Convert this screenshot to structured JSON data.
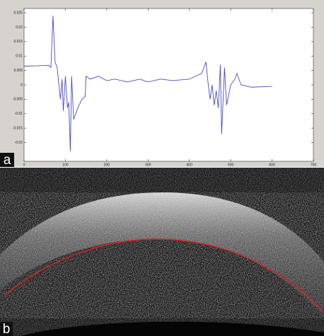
{
  "chart_data": {
    "type": "line",
    "x": [
      0,
      30,
      60,
      65,
      70,
      75,
      80,
      88,
      92,
      95,
      100,
      105,
      108,
      112,
      115,
      120,
      130,
      140,
      148,
      150,
      160,
      180,
      200,
      220,
      250,
      280,
      300,
      330,
      360,
      400,
      430,
      440,
      445,
      450,
      455,
      460,
      465,
      470,
      475,
      478,
      482,
      485,
      490,
      500,
      510,
      515,
      525,
      550,
      600
    ],
    "values": [
      0.0065,
      0.0066,
      0.0068,
      0.006,
      0.024,
      0.008,
      0.006,
      -0.005,
      0.002,
      -0.009,
      0.003,
      -0.008,
      -0.006,
      -0.023,
      0.003,
      -0.012,
      -0.008,
      -0.005,
      -0.004,
      0.003,
      0.002,
      0.003,
      0.0015,
      0.002,
      0.001,
      0.002,
      0.001,
      0.002,
      0.0015,
      0.002,
      0.004,
      0.008,
      0.001,
      -0.005,
      0.0,
      -0.007,
      -0.002,
      -0.008,
      0.007,
      -0.017,
      -0.004,
      0.006,
      -0.007,
      0.0,
      0.002,
      0.004,
      0.0,
      -0.0008,
      -0.0005
    ],
    "color": "#4b4bc8",
    "xlim": [
      0,
      700
    ],
    "xticks": [
      0,
      100,
      200,
      300,
      400,
      500,
      600,
      700
    ],
    "ylim": [
      -0.0265,
      0.0265
    ],
    "yticks": [
      0.025,
      0.02,
      0.015,
      0.01,
      0.005,
      0,
      -0.005,
      -0.01,
      -0.015,
      -0.02
    ]
  },
  "panels": {
    "a": "a",
    "b": "b"
  }
}
